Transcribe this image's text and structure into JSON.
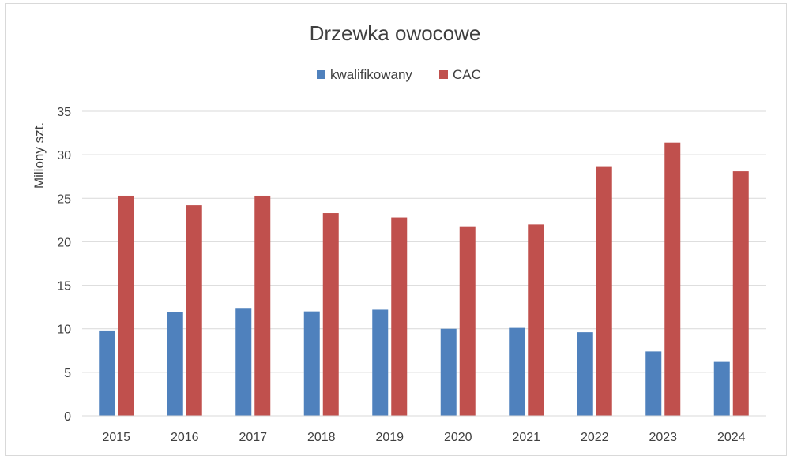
{
  "chart_data": {
    "type": "bar",
    "title": "Drzewka owocowe",
    "xlabel": "",
    "ylabel": "Miliony szt.",
    "categories": [
      "2015",
      "2016",
      "2017",
      "2018",
      "2019",
      "2020",
      "2021",
      "2022",
      "2023",
      "2024"
    ],
    "series": [
      {
        "name": "kwalifikowany",
        "color": "#4f81bd",
        "values": [
          9.8,
          11.9,
          12.4,
          12.0,
          12.2,
          10.0,
          10.1,
          9.6,
          7.4,
          6.2
        ]
      },
      {
        "name": "CAC",
        "color": "#c0504d",
        "values": [
          25.3,
          24.2,
          25.3,
          23.3,
          22.8,
          21.7,
          22.0,
          28.6,
          31.4,
          28.1
        ]
      }
    ],
    "ylim": [
      0,
      35
    ],
    "yticks": [
      "0",
      "5",
      "10",
      "15",
      "20",
      "25",
      "30",
      "35"
    ],
    "grid": true,
    "legend_position": "top"
  }
}
